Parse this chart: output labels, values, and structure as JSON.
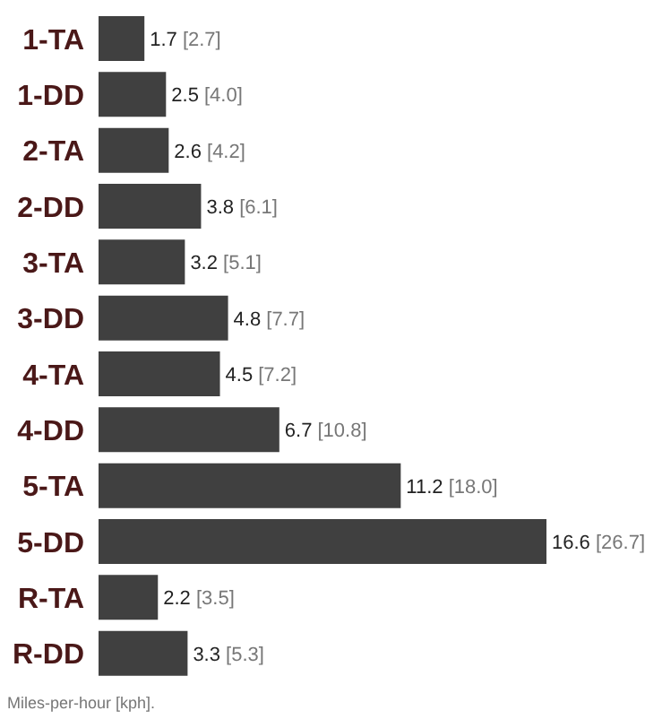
{
  "chart_data": {
    "type": "bar",
    "orientation": "horizontal",
    "categories": [
      "1-TA",
      "1-DD",
      "2-TA",
      "2-DD",
      "3-TA",
      "3-DD",
      "4-TA",
      "4-DD",
      "5-TA",
      "5-DD",
      "R-TA",
      "R-DD"
    ],
    "values": [
      1.7,
      2.5,
      2.6,
      3.8,
      3.2,
      4.8,
      4.5,
      6.7,
      11.2,
      16.6,
      2.2,
      3.3
    ],
    "value_labels": [
      "1.7 [2.7]",
      "2.5 [4.0]",
      "2.6 [4.2]",
      "3.8 [6.1]",
      "3.2 [5.1]",
      "4.8 [7.7]",
      "4.5 [7.2]",
      "6.7 [10.8]",
      "11.2 [18.0]",
      "16.6 [26.7]",
      "2.2 [3.5]",
      "3.3 [5.3]"
    ],
    "color": "#404040",
    "annotations": [
      "Miles-per-hour [kph]."
    ]
  }
}
